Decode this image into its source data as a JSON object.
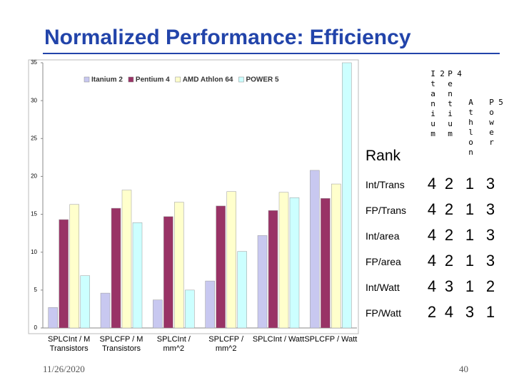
{
  "title": "Normalized Performance: Efficiency",
  "chart_data": {
    "type": "bar",
    "categories": [
      "SPLCInt / M Transistors",
      "SPLCFP / M Transistors",
      "SPLCInt / mm^2",
      "SPLCFP / mm^2",
      "SPLCInt / Watt",
      "SPLCFP / Watt"
    ],
    "series": [
      {
        "name": "Itanium 2",
        "color": "#c8c8f0",
        "values": [
          2.7,
          4.6,
          3.7,
          6.2,
          12.2,
          20.8
        ]
      },
      {
        "name": "Pentium 4",
        "color": "#993366",
        "values": [
          14.3,
          15.8,
          14.7,
          16.1,
          15.5,
          17.1
        ]
      },
      {
        "name": "AMD Athlon 64",
        "color": "#ffffcc",
        "values": [
          16.3,
          18.2,
          16.6,
          18.0,
          17.9,
          19.0
        ]
      },
      {
        "name": "POWER 5",
        "color": "#ccffff",
        "values": [
          6.9,
          13.9,
          5.0,
          10.1,
          17.2,
          35
        ]
      }
    ],
    "ylim": [
      0,
      35
    ],
    "yticks": [
      0,
      5,
      10,
      15,
      20,
      25,
      30,
      35
    ],
    "legend": "top"
  },
  "table": {
    "header": "Rank",
    "columns": [
      "Itanium 2",
      "Pentium 4",
      "Athlon",
      "Power 5"
    ],
    "rows": [
      {
        "label": "Int/Trans",
        "ranks": [
          4,
          2,
          1,
          3
        ]
      },
      {
        "label": "FP/Trans",
        "ranks": [
          4,
          2,
          1,
          3
        ]
      },
      {
        "label": "Int/area",
        "ranks": [
          4,
          2,
          1,
          3
        ]
      },
      {
        "label": "FP/area",
        "ranks": [
          4,
          2,
          1,
          3
        ]
      },
      {
        "label": "Int/Watt",
        "ranks": [
          4,
          3,
          1,
          2
        ]
      },
      {
        "label": "FP/Watt",
        "ranks": [
          2,
          4,
          3,
          1
        ]
      }
    ]
  },
  "footer": {
    "date": "11/26/2020",
    "page": 40
  }
}
